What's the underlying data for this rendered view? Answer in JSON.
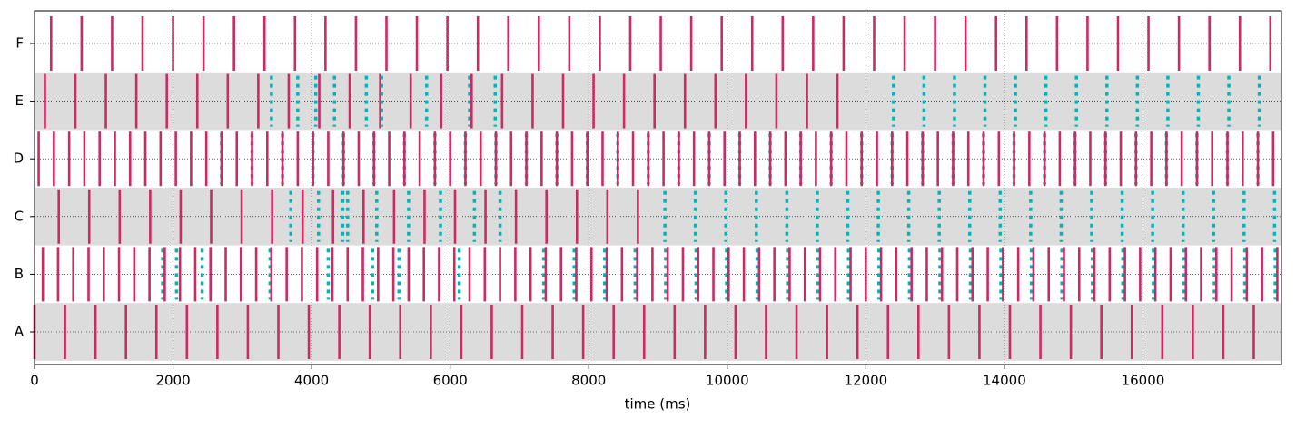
{
  "chart_data": {
    "type": "eventplot",
    "xlabel": "time (ms)",
    "xlim": [
      0,
      18000
    ],
    "xticks": [
      0,
      2000,
      4000,
      6000,
      8000,
      10000,
      12000,
      14000,
      16000
    ],
    "grid": true,
    "spike_color": "#cc2a63",
    "secondary_color": "#00b5b8",
    "band_color": "#dcdcdc",
    "rows": [
      {
        "label": "A",
        "shaded": true,
        "spikes": [
          0,
          440,
          880,
          1320,
          1760,
          2200,
          2640,
          3080,
          3520,
          3960,
          4400,
          4840,
          5280,
          5720,
          6160,
          6600,
          7040,
          7480,
          7920,
          8360,
          8800,
          9240,
          9680,
          10120,
          10560,
          11000,
          11440,
          11880,
          12320,
          12760,
          13200,
          13640,
          14080,
          14520,
          14960,
          15400,
          15840,
          16280,
          16720,
          17160,
          17600
        ],
        "secondary": []
      },
      {
        "label": "B",
        "shaded": false,
        "spikes": [
          120,
          340,
          560,
          780,
          1000,
          1220,
          1440,
          1660,
          1880,
          2100,
          2320,
          2540,
          2760,
          2980,
          3200,
          3420,
          3640,
          3860,
          4080,
          4300,
          4520,
          4740,
          4960,
          5180,
          5400,
          5620,
          5840,
          6060,
          6280,
          6500,
          6720,
          6940,
          7160,
          7380,
          7600,
          7820,
          8040,
          8260,
          8480,
          8700,
          8920,
          9140,
          9360,
          9580,
          9800,
          10020,
          10240,
          10460,
          10680,
          10900,
          11120,
          11340,
          11560,
          11780,
          12000,
          12220,
          12440,
          12660,
          12880,
          13100,
          13320,
          13540,
          13760,
          13980,
          14200,
          14420,
          14640,
          14860,
          15080,
          15300,
          15520,
          15740,
          15960,
          16180,
          16400,
          16620,
          16840,
          17060,
          17280,
          17500,
          17720,
          17940
        ],
        "secondary": [
          1850,
          2050,
          2420,
          3400,
          4240,
          4880,
          5260,
          6130,
          7350,
          7790,
          8230,
          8670,
          9110,
          9550,
          9990,
          10430,
          10870,
          11310,
          11750,
          12190,
          12630,
          13070,
          13510,
          13950,
          14390,
          14830,
          15270,
          15710,
          16150,
          16590,
          17030,
          17470,
          17910
        ]
      },
      {
        "label": "C",
        "shaded": true,
        "spikes": [
          350,
          790,
          1230,
          1670,
          2110,
          2550,
          2990,
          3430,
          3870,
          4310,
          4750,
          5190,
          5630,
          6070,
          6510,
          6950,
          7390,
          7830,
          8270,
          8710
        ],
        "secondary": [
          3700,
          4100,
          4450,
          4520,
          4940,
          5400,
          5860,
          6350,
          6720,
          9100,
          9540,
          9980,
          10420,
          10860,
          11300,
          11740,
          12180,
          12620,
          13060,
          13500,
          13940,
          14380,
          14820,
          15260,
          15700,
          16140,
          16580,
          17020,
          17460,
          17900
        ]
      },
      {
        "label": "D",
        "shaded": false,
        "spikes": [
          60,
          280,
          500,
          720,
          940,
          1160,
          1380,
          1600,
          1820,
          2040,
          2260,
          2480,
          2700,
          2920,
          3140,
          3360,
          3580,
          3800,
          4020,
          4240,
          4460,
          4680,
          4900,
          5120,
          5340,
          5560,
          5780,
          6000,
          6220,
          6440,
          6660,
          6880,
          7100,
          7320,
          7540,
          7760,
          7980,
          8200,
          8420,
          8640,
          8860,
          9080,
          9300,
          9520,
          9740,
          9960,
          10180,
          10400,
          10620,
          10840,
          11060,
          11280,
          11500,
          11720,
          11940,
          12160,
          12380,
          12600,
          12820,
          13040,
          13260,
          13480,
          13700,
          13920,
          14140,
          14360,
          14580,
          14800,
          15020,
          15240,
          15460,
          15680,
          15900,
          16120,
          16340,
          16560,
          16780,
          17000,
          17220,
          17440,
          17660,
          17880
        ],
        "secondary": [
          2700,
          3140,
          3580,
          4020,
          4460,
          4900,
          5340,
          5780,
          6220,
          6660,
          7100,
          7540,
          7980,
          8420,
          8860,
          9300,
          9740,
          10180,
          10620,
          11060,
          11500,
          11940,
          12380,
          12820,
          13260,
          13700,
          14140,
          14580,
          15020,
          15460,
          15900,
          16340,
          16780,
          17220,
          17660
        ]
      },
      {
        "label": "E",
        "shaded": true,
        "spikes": [
          150,
          590,
          1030,
          1470,
          1910,
          2350,
          2790,
          3230,
          3670,
          4110,
          4550,
          4990,
          5430,
          5870,
          6310,
          6750,
          7190,
          7630,
          8070,
          8510,
          8950,
          9390,
          9830,
          10270,
          10710,
          11150,
          11590
        ],
        "secondary": [
          3420,
          3800,
          4060,
          4330,
          4790,
          5010,
          5660,
          6280,
          6650,
          12400,
          12840,
          13280,
          13720,
          14160,
          14600,
          15040,
          15480,
          15920,
          16360,
          16800,
          17240,
          17680
        ]
      },
      {
        "label": "F",
        "shaded": false,
        "spikes": [
          240,
          680,
          1120,
          1560,
          2000,
          2440,
          2880,
          3320,
          3760,
          4200,
          4640,
          5080,
          5520,
          5960,
          6400,
          6840,
          7280,
          7720,
          8160,
          8600,
          9040,
          9480,
          9920,
          10360,
          10800,
          11240,
          11680,
          12120,
          12560,
          13000,
          13440,
          13880,
          14320,
          14760,
          15200,
          15640,
          16080,
          16520,
          16960,
          17400,
          17840
        ],
        "secondary": []
      }
    ]
  }
}
